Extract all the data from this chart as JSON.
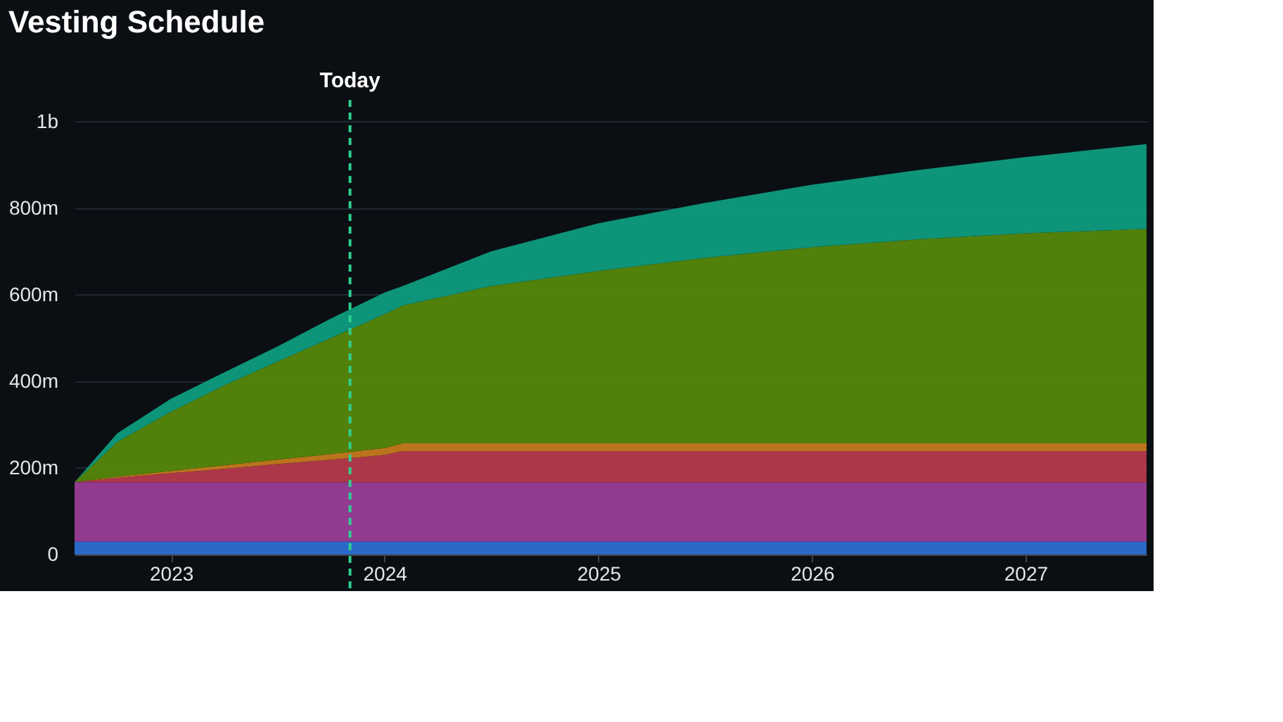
{
  "chart_data": {
    "type": "area",
    "title": "Vesting Schedule",
    "stacked": true,
    "x": [
      "2022-07-20",
      "2022-10-01",
      "2023-01-01",
      "2023-04-01",
      "2023-07-01",
      "2023-10-01",
      "2024-01-01",
      "2024-02-01",
      "2024-07-01",
      "2025-01-01",
      "2025-07-01",
      "2026-01-01",
      "2026-07-01",
      "2027-01-01",
      "2027-07-27"
    ],
    "series": [
      {
        "color": "#2d6fd2",
        "values": [
          30000000,
          30000000,
          30000000,
          30000000,
          30000000,
          30000000,
          30000000,
          30000000,
          30000000,
          30000000,
          30000000,
          30000000,
          30000000,
          30000000,
          30000000
        ]
      },
      {
        "color": "#9a3e98",
        "values": [
          137000000,
          137000000,
          137000000,
          137000000,
          137000000,
          137000000,
          137000000,
          137000000,
          137000000,
          137000000,
          137000000,
          137000000,
          137000000,
          137000000,
          137000000
        ]
      },
      {
        "color": "#b53a4c",
        "values": [
          0,
          10000000,
          21000000,
          31000000,
          42000000,
          52000000,
          63000000,
          72000000,
          72000000,
          72000000,
          72000000,
          72000000,
          72000000,
          72000000,
          72000000
        ]
      },
      {
        "color": "#c57a1c",
        "values": [
          0,
          3000000,
          5000000,
          8000000,
          10000000,
          13000000,
          16000000,
          18000000,
          18000000,
          18000000,
          18000000,
          18000000,
          18000000,
          18000000,
          18000000
        ]
      },
      {
        "color": "#55880a",
        "values": [
          0,
          80000000,
          137000000,
          184000000,
          226000000,
          268000000,
          309000000,
          318000000,
          363000000,
          398000000,
          428000000,
          453000000,
          471000000,
          485000000,
          495000000
        ]
      },
      {
        "color": "#0f9c7e",
        "values": [
          0,
          20000000,
          30000000,
          30000000,
          35000000,
          45000000,
          50000000,
          45000000,
          80000000,
          110000000,
          127000000,
          144000000,
          160000000,
          176000000,
          196000000
        ]
      }
    ],
    "xlim": [
      "2022-07-20",
      "2027-07-27"
    ],
    "xticks": [
      {
        "value": "2023-01-01",
        "label": "2023"
      },
      {
        "value": "2024-01-01",
        "label": "2024"
      },
      {
        "value": "2025-01-01",
        "label": "2025"
      },
      {
        "value": "2026-01-01",
        "label": "2026"
      },
      {
        "value": "2027-01-01",
        "label": "2027"
      }
    ],
    "ylim": [
      0,
      1050000000
    ],
    "yticks": [
      {
        "value": 0,
        "label": "0"
      },
      {
        "value": 200000000,
        "label": "200m"
      },
      {
        "value": 400000000,
        "label": "400m"
      },
      {
        "value": 600000000,
        "label": "600m"
      },
      {
        "value": 800000000,
        "label": "800m"
      },
      {
        "value": 1000000000,
        "label": "1b"
      }
    ],
    "grid": "y",
    "legend": false,
    "ref_lines": [
      {
        "axis": "x",
        "value": "2023-11-03",
        "label": "Today",
        "color": "#2ecf8f",
        "line_style": "dashed"
      }
    ]
  }
}
